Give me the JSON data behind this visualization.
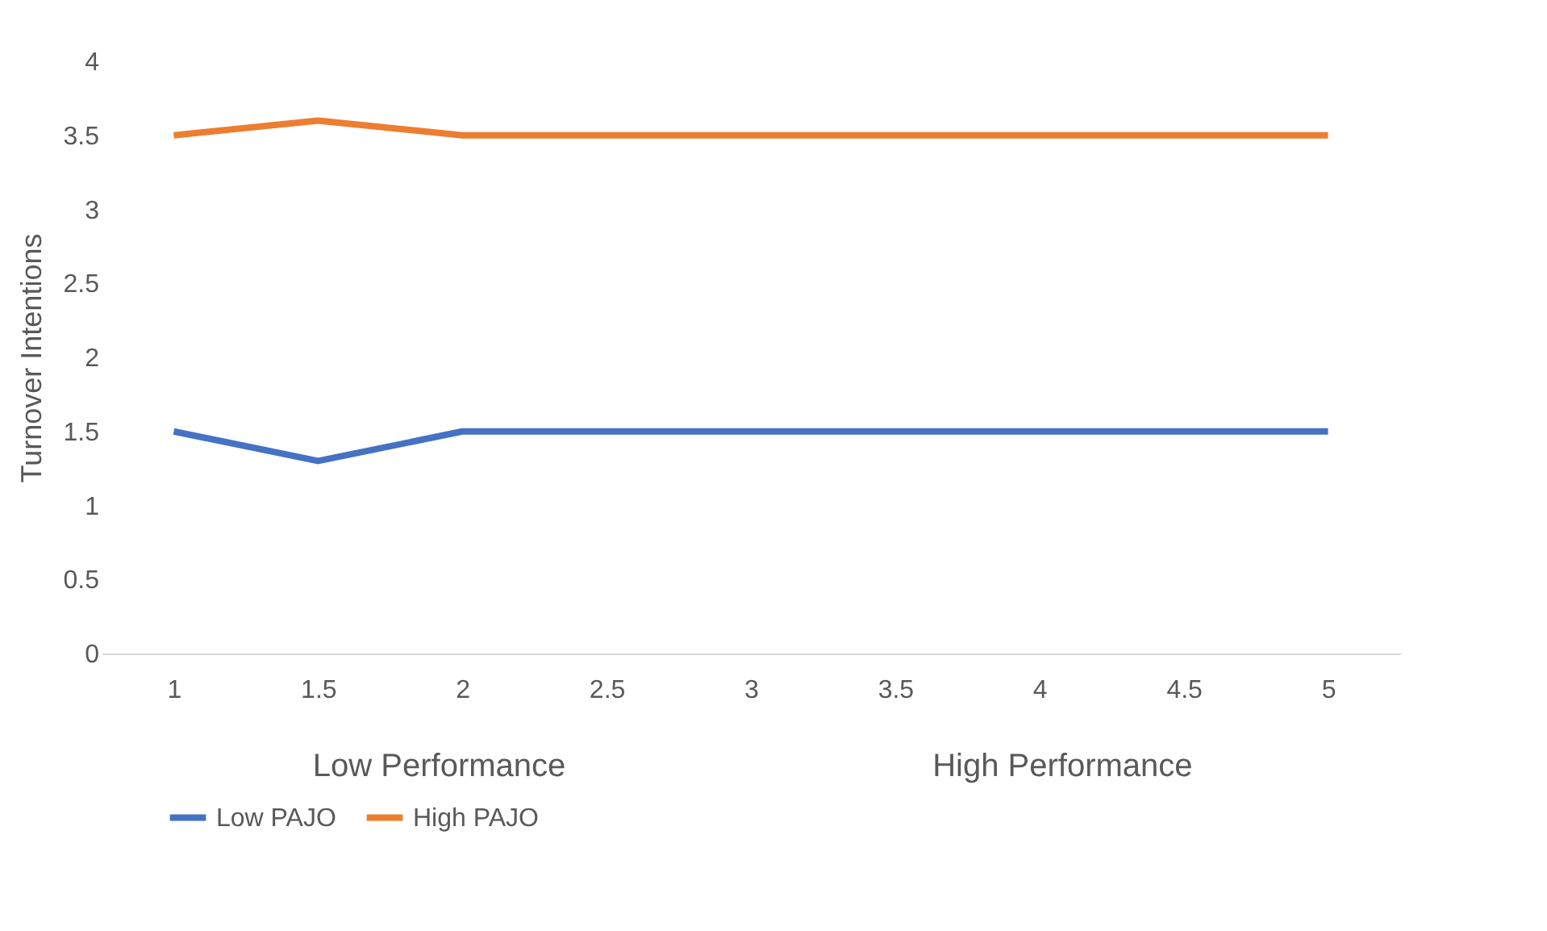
{
  "chart_data": {
    "type": "line",
    "ylabel": "Turnover Intentions",
    "categories": [
      "1",
      "1.5",
      "2",
      "2.5",
      "3",
      "3.5",
      "4",
      "4.5",
      "5"
    ],
    "series": [
      {
        "name": "Low PAJO",
        "color": "#4472c4",
        "values": [
          1.5,
          1.3,
          1.5,
          1.5,
          1.5,
          1.5,
          1.5,
          1.5,
          1.5
        ]
      },
      {
        "name": "High PAJO",
        "color": "#ed7d31",
        "values": [
          3.5,
          3.6,
          3.5,
          3.5,
          3.5,
          3.5,
          3.5,
          3.5,
          3.5
        ]
      }
    ],
    "ylim": [
      0,
      4
    ],
    "yticks": [
      0,
      0.5,
      1,
      1.5,
      2,
      2.5,
      3,
      3.5,
      4
    ],
    "grid": false,
    "legend": "bottom",
    "marker": "none",
    "line_style": "solid",
    "annotations": [
      "Low Performance",
      "High Performance"
    ]
  }
}
